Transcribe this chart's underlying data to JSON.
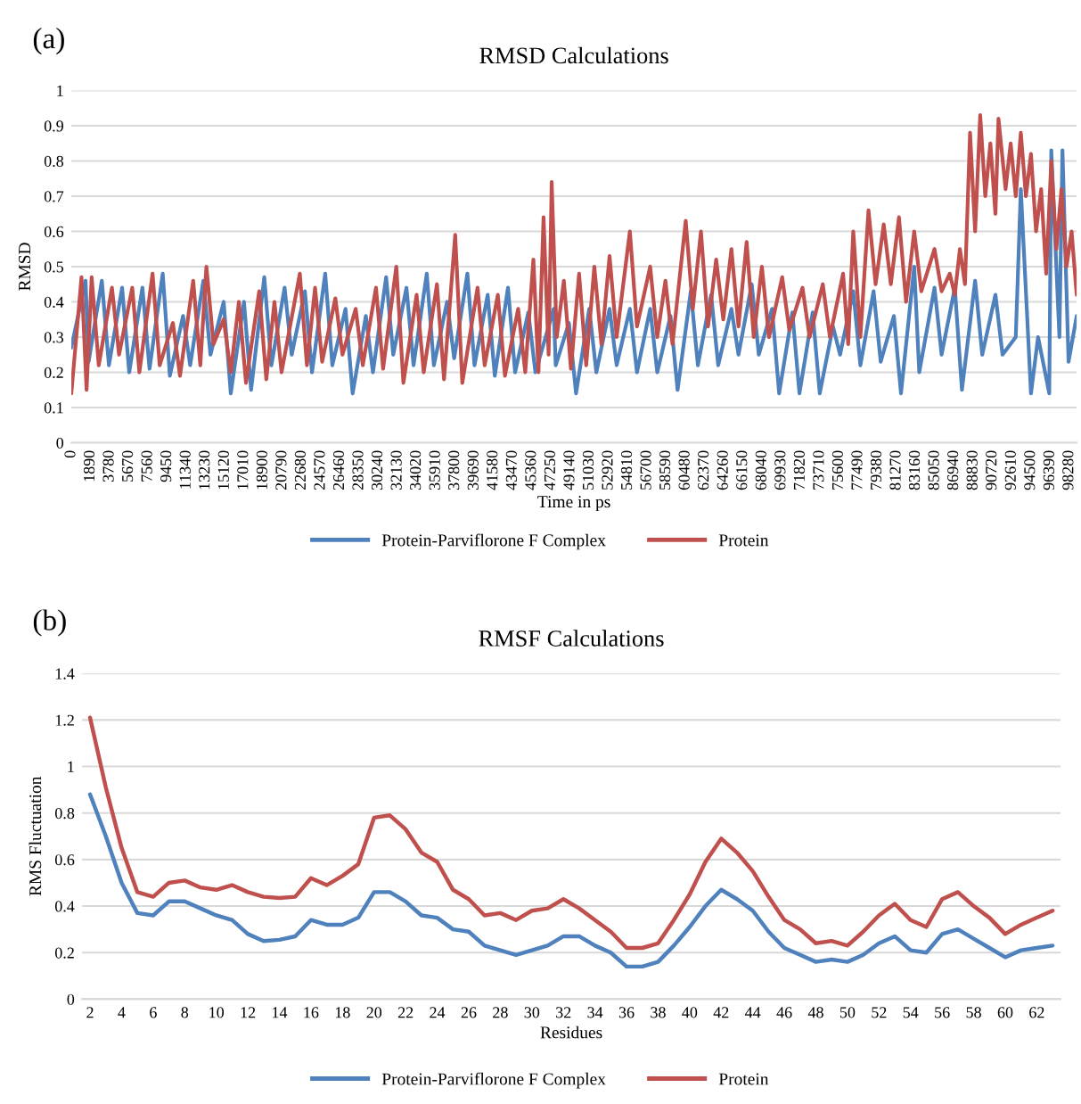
{
  "chart_data": [
    {
      "type": "line",
      "title": "RMSD Calculations",
      "xlabel": "Time in ps",
      "ylabel": "RMSD",
      "annotations": [
        "(a)"
      ],
      "xlim": [
        0,
        99000
      ],
      "xticks": [
        0,
        1890,
        3780,
        5670,
        7560,
        9450,
        11340,
        13230,
        15120,
        17010,
        18900,
        20790,
        22680,
        24570,
        26460,
        28350,
        30240,
        32130,
        34020,
        35910,
        37800,
        39690,
        41580,
        43470,
        45360,
        47250,
        49140,
        51030,
        52920,
        54810,
        56700,
        58590,
        60480,
        62370,
        64260,
        66150,
        68040,
        69930,
        71820,
        73710,
        75600,
        77490,
        79380,
        81270,
        83160,
        85050,
        86940,
        88830,
        90720,
        92610,
        94500,
        96390,
        98280
      ],
      "ylim": [
        0,
        1
      ],
      "yticks": [
        0,
        0.1,
        0.2,
        0.3,
        0.4,
        0.5,
        0.6,
        0.7,
        0.8,
        0.9,
        1
      ],
      "grid": "y",
      "legend": "bottom",
      "marker": "none",
      "line_style": "solid",
      "series": [
        {
          "name": "Protein-Parviflorone F Complex",
          "color": "#4f81bd",
          "x": [
            0,
            1400,
            1700,
            3000,
            3700,
            5000,
            5700,
            7000,
            7700,
            9000,
            9700,
            11000,
            11700,
            13000,
            13700,
            15000,
            15700,
            17000,
            17700,
            19000,
            19700,
            21000,
            21700,
            23000,
            23700,
            25000,
            25700,
            27000,
            27700,
            29000,
            29700,
            31000,
            31700,
            33000,
            33700,
            35000,
            35700,
            37000,
            37700,
            39000,
            39700,
            41000,
            41700,
            43000,
            43700,
            45000,
            45700,
            47500,
            47700,
            49000,
            49700,
            51000,
            51700,
            53000,
            53700,
            55000,
            55700,
            57000,
            57700,
            59000,
            59700,
            61000,
            61700,
            63000,
            63700,
            65000,
            65700,
            67000,
            67700,
            69000,
            69700,
            71000,
            71700,
            73000,
            73700,
            75000,
            75700,
            77000,
            77700,
            79000,
            79700,
            81000,
            81700,
            83000,
            83500,
            85000,
            85700,
            87000,
            87700,
            89000,
            89700,
            91000,
            91700,
            93000,
            93500,
            94500,
            95200,
            96300,
            96500,
            97300,
            97600,
            98200,
            99000
          ],
          "values": [
            0.27,
            0.46,
            0.23,
            0.46,
            0.22,
            0.44,
            0.2,
            0.44,
            0.21,
            0.48,
            0.19,
            0.36,
            0.22,
            0.46,
            0.25,
            0.4,
            0.14,
            0.4,
            0.15,
            0.47,
            0.22,
            0.44,
            0.25,
            0.43,
            0.2,
            0.48,
            0.22,
            0.38,
            0.14,
            0.36,
            0.2,
            0.47,
            0.25,
            0.44,
            0.22,
            0.48,
            0.22,
            0.4,
            0.24,
            0.48,
            0.22,
            0.42,
            0.19,
            0.44,
            0.2,
            0.37,
            0.2,
            0.38,
            0.22,
            0.34,
            0.14,
            0.38,
            0.2,
            0.38,
            0.22,
            0.38,
            0.2,
            0.38,
            0.2,
            0.36,
            0.15,
            0.43,
            0.22,
            0.42,
            0.22,
            0.38,
            0.25,
            0.45,
            0.25,
            0.38,
            0.14,
            0.37,
            0.14,
            0.37,
            0.14,
            0.33,
            0.25,
            0.43,
            0.22,
            0.43,
            0.23,
            0.36,
            0.14,
            0.5,
            0.2,
            0.44,
            0.25,
            0.44,
            0.15,
            0.46,
            0.25,
            0.42,
            0.25,
            0.3,
            0.72,
            0.14,
            0.3,
            0.14,
            0.83,
            0.3,
            0.83,
            0.23,
            0.36
          ]
        },
        {
          "name": "Protein",
          "color": "#c0504d",
          "x": [
            0,
            1000,
            1500,
            2000,
            2700,
            4000,
            4700,
            6000,
            6700,
            8000,
            8700,
            10000,
            10700,
            12000,
            12700,
            13300,
            14000,
            15000,
            15700,
            16500,
            17200,
            18500,
            19200,
            20000,
            20700,
            22500,
            23200,
            24000,
            24700,
            26000,
            26700,
            28000,
            28700,
            30000,
            30700,
            32000,
            32700,
            34000,
            34700,
            36000,
            36700,
            37800,
            38500,
            40000,
            40700,
            42000,
            42700,
            44000,
            44700,
            45500,
            46000,
            46500,
            47000,
            47300,
            47800,
            48500,
            49200,
            50000,
            50700,
            51500,
            52200,
            53000,
            53700,
            55000,
            55700,
            57000,
            57700,
            58500,
            59200,
            60500,
            61200,
            62000,
            62700,
            63500,
            64200,
            65000,
            65700,
            66500,
            67200,
            68000,
            68700,
            70000,
            70700,
            72000,
            72700,
            74000,
            74700,
            76000,
            76500,
            77000,
            77700,
            78500,
            79200,
            80000,
            80700,
            81500,
            82200,
            83000,
            83700,
            85000,
            85700,
            86500,
            87000,
            87500,
            88000,
            88500,
            89000,
            89500,
            90000,
            90500,
            91000,
            91300,
            92000,
            92500,
            93000,
            93500,
            94000,
            94500,
            95000,
            95500,
            96000,
            96500,
            97000,
            97500,
            98000,
            98500,
            99000
          ],
          "values": [
            0.14,
            0.47,
            0.15,
            0.47,
            0.22,
            0.44,
            0.25,
            0.44,
            0.2,
            0.48,
            0.22,
            0.34,
            0.19,
            0.46,
            0.22,
            0.5,
            0.28,
            0.35,
            0.2,
            0.4,
            0.17,
            0.43,
            0.18,
            0.4,
            0.2,
            0.48,
            0.22,
            0.44,
            0.23,
            0.41,
            0.25,
            0.38,
            0.22,
            0.44,
            0.21,
            0.5,
            0.17,
            0.42,
            0.2,
            0.45,
            0.18,
            0.59,
            0.17,
            0.44,
            0.22,
            0.42,
            0.19,
            0.38,
            0.2,
            0.52,
            0.2,
            0.64,
            0.25,
            0.74,
            0.3,
            0.46,
            0.21,
            0.48,
            0.22,
            0.5,
            0.28,
            0.53,
            0.3,
            0.6,
            0.33,
            0.5,
            0.3,
            0.46,
            0.28,
            0.63,
            0.38,
            0.6,
            0.33,
            0.52,
            0.35,
            0.55,
            0.33,
            0.57,
            0.3,
            0.5,
            0.3,
            0.47,
            0.32,
            0.44,
            0.3,
            0.45,
            0.3,
            0.48,
            0.28,
            0.6,
            0.3,
            0.66,
            0.45,
            0.62,
            0.45,
            0.64,
            0.4,
            0.6,
            0.43,
            0.55,
            0.43,
            0.48,
            0.42,
            0.55,
            0.45,
            0.88,
            0.6,
            0.93,
            0.7,
            0.85,
            0.65,
            0.92,
            0.72,
            0.85,
            0.7,
            0.88,
            0.7,
            0.82,
            0.6,
            0.72,
            0.48,
            0.8,
            0.55,
            0.72,
            0.5,
            0.6,
            0.42
          ]
        }
      ]
    },
    {
      "type": "line",
      "title": "RMSF Calculations",
      "xlabel": "Residues",
      "ylabel": "RMS Fluctuation",
      "annotations": [
        "(b)"
      ],
      "xlim": [
        1.5,
        63.5
      ],
      "xticks": [
        2,
        4,
        6,
        8,
        10,
        12,
        14,
        16,
        18,
        20,
        22,
        24,
        26,
        28,
        30,
        32,
        34,
        36,
        38,
        40,
        42,
        44,
        46,
        48,
        50,
        52,
        54,
        56,
        58,
        60,
        62
      ],
      "ylim": [
        0,
        1.4
      ],
      "yticks": [
        0,
        0.2,
        0.4,
        0.6,
        0.8,
        1,
        1.2,
        1.4
      ],
      "grid": "y",
      "legend": "bottom",
      "marker": "none",
      "line_style": "solid",
      "x": [
        2,
        3,
        4,
        5,
        6,
        7,
        8,
        9,
        10,
        11,
        12,
        13,
        14,
        15,
        16,
        17,
        18,
        19,
        20,
        21,
        22,
        23,
        24,
        25,
        26,
        27,
        28,
        29,
        30,
        31,
        32,
        33,
        34,
        35,
        36,
        37,
        38,
        39,
        40,
        41,
        42,
        43,
        44,
        45,
        46,
        47,
        48,
        49,
        50,
        51,
        52,
        53,
        54,
        55,
        56,
        57,
        58,
        59,
        60,
        61,
        62,
        63
      ],
      "series": [
        {
          "name": "Protein-Parviflorone F Complex",
          "color": "#4f81bd",
          "values": [
            0.88,
            0.7,
            0.5,
            0.37,
            0.36,
            0.42,
            0.42,
            0.39,
            0.36,
            0.34,
            0.28,
            0.25,
            0.255,
            0.27,
            0.34,
            0.32,
            0.32,
            0.35,
            0.46,
            0.46,
            0.42,
            0.36,
            0.35,
            0.3,
            0.29,
            0.23,
            0.21,
            0.19,
            0.21,
            0.23,
            0.27,
            0.27,
            0.23,
            0.2,
            0.14,
            0.14,
            0.16,
            0.23,
            0.31,
            0.4,
            0.47,
            0.43,
            0.38,
            0.29,
            0.22,
            0.19,
            0.16,
            0.17,
            0.16,
            0.19,
            0.24,
            0.27,
            0.21,
            0.2,
            0.28,
            0.3,
            0.26,
            0.22,
            0.18,
            0.21,
            0.22,
            0.23
          ]
        },
        {
          "name": "Protein",
          "color": "#c0504d",
          "values": [
            1.21,
            0.91,
            0.65,
            0.46,
            0.44,
            0.5,
            0.51,
            0.48,
            0.47,
            0.49,
            0.46,
            0.44,
            0.435,
            0.44,
            0.52,
            0.49,
            0.53,
            0.58,
            0.78,
            0.79,
            0.73,
            0.63,
            0.59,
            0.47,
            0.43,
            0.36,
            0.37,
            0.34,
            0.38,
            0.39,
            0.43,
            0.39,
            0.34,
            0.29,
            0.22,
            0.22,
            0.24,
            0.34,
            0.45,
            0.59,
            0.69,
            0.63,
            0.55,
            0.44,
            0.34,
            0.3,
            0.24,
            0.25,
            0.23,
            0.29,
            0.36,
            0.41,
            0.34,
            0.31,
            0.43,
            0.46,
            0.4,
            0.35,
            0.28,
            0.32,
            0.35,
            0.38
          ]
        }
      ]
    }
  ]
}
